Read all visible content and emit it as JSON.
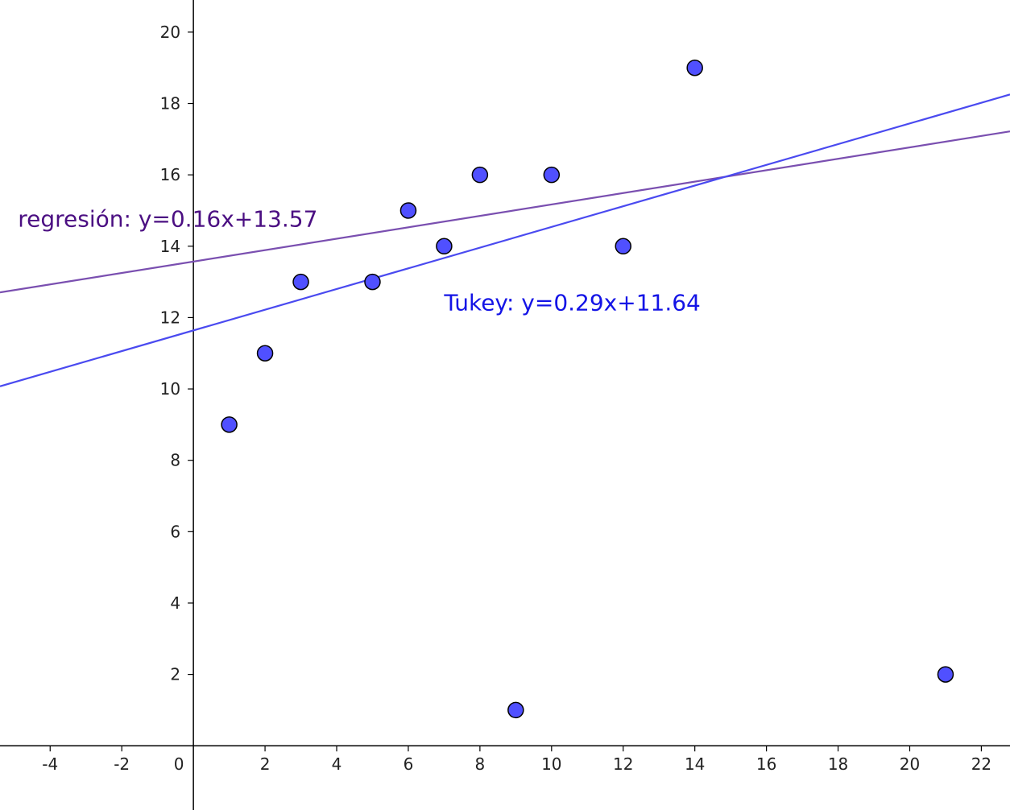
{
  "chart_data": {
    "type": "scatter",
    "title": "",
    "xlabel": "",
    "ylabel": "",
    "xlim": [
      -5.4,
      22.8
    ],
    "ylim": [
      -1.8,
      20.9
    ],
    "x_ticks": [
      -4,
      -2,
      0,
      2,
      4,
      6,
      8,
      10,
      12,
      14,
      16,
      18,
      20,
      22
    ],
    "y_ticks": [
      2,
      4,
      6,
      8,
      10,
      12,
      14,
      16,
      18,
      20
    ],
    "grid": false,
    "points": {
      "x": [
        1,
        2,
        3,
        5,
        6,
        7,
        8,
        9,
        10,
        12,
        14,
        21
      ],
      "y": [
        9,
        11,
        13,
        13,
        15,
        14,
        16,
        1,
        16,
        14,
        19,
        2
      ],
      "color": "#5050ff"
    },
    "lines": [
      {
        "label": "regresión: y=0.16x+13.57",
        "slope": 0.16,
        "intercept": 13.57,
        "color": "#7a4fb0",
        "label_color": "#4b0f82"
      },
      {
        "label": "Tukey: y=0.29x+11.64",
        "slope": 0.29,
        "intercept": 11.64,
        "color": "#4a4af0",
        "label_color": "#1414e6"
      }
    ]
  }
}
